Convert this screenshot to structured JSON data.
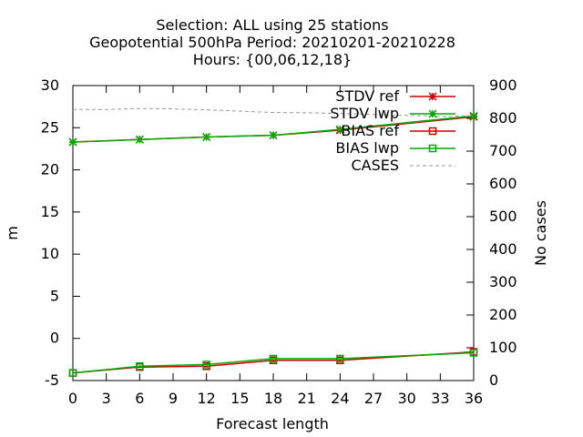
{
  "title_lines": [
    "Selection: ALL using    25 stations",
    "Geopotential 500hPa   Period: 20210201-20210228",
    "Hours: {00,06,12,18}"
  ],
  "chart_data": {
    "type": "line",
    "xlabel": "Forecast length",
    "ylabel": "m",
    "y2label": "No cases",
    "xlim": [
      0,
      36
    ],
    "ylim": [
      -5,
      30
    ],
    "y2lim": [
      0,
      900
    ],
    "xticks": [
      0,
      3,
      6,
      9,
      12,
      15,
      18,
      21,
      24,
      27,
      30,
      33,
      36
    ],
    "yticks": [
      -5,
      0,
      5,
      10,
      15,
      20,
      25,
      30
    ],
    "y2ticks": [
      0,
      100,
      200,
      300,
      400,
      500,
      600,
      700,
      800,
      900
    ],
    "grid": false,
    "legend_position": "top-right",
    "series": [
      {
        "name": "STDV ref",
        "axis": "y",
        "color": "#cc0000",
        "marker": "star",
        "x": [
          0,
          6,
          12,
          18,
          24,
          36
        ],
        "y": [
          23.3,
          23.6,
          23.9,
          24.1,
          24.7,
          26.3
        ]
      },
      {
        "name": "STDV lwp",
        "axis": "y",
        "color": "#00aa00",
        "marker": "star",
        "x": [
          0,
          6,
          12,
          18,
          24,
          36
        ],
        "y": [
          23.3,
          23.6,
          23.9,
          24.1,
          24.8,
          26.4
        ]
      },
      {
        "name": "BIAS ref",
        "axis": "y",
        "color": "#cc0000",
        "marker": "square",
        "x": [
          0,
          6,
          12,
          18,
          24,
          36
        ],
        "y": [
          -4.1,
          -3.4,
          -3.3,
          -2.6,
          -2.6,
          -1.6
        ]
      },
      {
        "name": "BIAS lwp",
        "axis": "y",
        "color": "#00aa00",
        "marker": "square",
        "x": [
          0,
          6,
          12,
          18,
          24,
          36
        ],
        "y": [
          -4.1,
          -3.3,
          -3.1,
          -2.4,
          -2.4,
          -1.7
        ]
      },
      {
        "name": "CASES",
        "axis": "y2",
        "color": "#999999",
        "dashed": true,
        "marker": "none",
        "x": [
          0,
          3,
          6,
          9,
          12,
          15,
          18,
          21,
          24,
          27,
          30,
          33,
          36
        ],
        "y": [
          827,
          827,
          830,
          829,
          826,
          822,
          818,
          817,
          815,
          812,
          809,
          806,
          808
        ]
      }
    ]
  }
}
